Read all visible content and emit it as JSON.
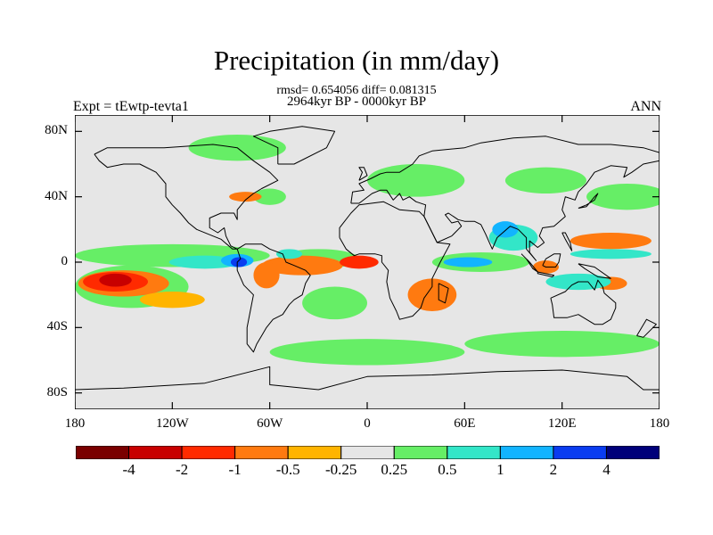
{
  "title": "Precipitation (in mm/day)",
  "stats_line": "rmsd= 0.654056 diff= 0.081315",
  "period_line": "2964kyr BP - 0000kyr BP",
  "left_label": "Expt = tEwtp-tevta1",
  "right_label": "ANN",
  "colors": {
    "background_land_ocean": "#e6e6e6",
    "coast": "#000000"
  },
  "chart_data": {
    "type": "heatmap",
    "projection": "cylindrical-equidistant",
    "title": "Precipitation (in mm/day)",
    "xlabel": "",
    "ylabel": "",
    "xlim": [
      -180,
      180
    ],
    "ylim": [
      -90,
      90
    ],
    "y_ticks": [
      {
        "v": 80,
        "label": "80N"
      },
      {
        "v": 40,
        "label": "40N"
      },
      {
        "v": 0,
        "label": "0"
      },
      {
        "v": -40,
        "label": "40S"
      },
      {
        "v": -80,
        "label": "80S"
      }
    ],
    "x_ticks": [
      {
        "v": -180,
        "label": "180"
      },
      {
        "v": -120,
        "label": "120W"
      },
      {
        "v": -60,
        "label": "60W"
      },
      {
        "v": 0,
        "label": "0"
      },
      {
        "v": 60,
        "label": "60E"
      },
      {
        "v": 120,
        "label": "120E"
      },
      {
        "v": 180,
        "label": "180"
      }
    ],
    "colorbar": {
      "colors": [
        "#7a0000",
        "#c80000",
        "#ff2a00",
        "#ff7a10",
        "#ffb400",
        "#e6e6e6",
        "#66ee66",
        "#33e6c8",
        "#12b4ff",
        "#0a3cf0",
        "#00007a"
      ],
      "labels": [
        "-4",
        "-2",
        "-1",
        "-0.5",
        "-0.25",
        "0.25",
        "0.5",
        "1",
        "2",
        "4"
      ]
    },
    "regions": [
      {
        "c": 6,
        "lon": -120,
        "lat": 4,
        "rx": 60,
        "ry": 7
      },
      {
        "c": 7,
        "lon": -100,
        "lat": 0,
        "rx": 22,
        "ry": 4
      },
      {
        "c": 8,
        "lon": -80,
        "lat": 1,
        "rx": 10,
        "ry": 4
      },
      {
        "c": 9,
        "lon": -79,
        "lat": 0,
        "rx": 5,
        "ry": 3
      },
      {
        "c": 6,
        "lon": -145,
        "lat": -15,
        "rx": 35,
        "ry": 13
      },
      {
        "c": 3,
        "lon": -150,
        "lat": -13,
        "rx": 28,
        "ry": 8
      },
      {
        "c": 2,
        "lon": -155,
        "lat": -12,
        "rx": 20,
        "ry": 6
      },
      {
        "c": 1,
        "lon": -155,
        "lat": -11,
        "rx": 10,
        "ry": 4
      },
      {
        "c": 4,
        "lon": -120,
        "lat": -23,
        "rx": 20,
        "ry": 5
      },
      {
        "c": 6,
        "lon": -30,
        "lat": 2,
        "rx": 25,
        "ry": 6
      },
      {
        "c": 3,
        "lon": -40,
        "lat": -2,
        "rx": 25,
        "ry": 6
      },
      {
        "c": 2,
        "lon": -5,
        "lat": 0,
        "rx": 12,
        "ry": 4
      },
      {
        "c": 3,
        "lon": -62,
        "lat": -8,
        "rx": 8,
        "ry": 8
      },
      {
        "c": 7,
        "lon": -48,
        "lat": 5,
        "rx": 8,
        "ry": 3
      },
      {
        "c": 3,
        "lon": 40,
        "lat": -20,
        "rx": 15,
        "ry": 10
      },
      {
        "c": 6,
        "lon": 70,
        "lat": 0,
        "rx": 30,
        "ry": 6
      },
      {
        "c": 8,
        "lon": 62,
        "lat": 0,
        "rx": 15,
        "ry": 3
      },
      {
        "c": 7,
        "lon": 90,
        "lat": 15,
        "rx": 15,
        "ry": 8
      },
      {
        "c": 8,
        "lon": 85,
        "lat": 20,
        "rx": 8,
        "ry": 5
      },
      {
        "c": 6,
        "lon": 30,
        "lat": 50,
        "rx": 30,
        "ry": 10
      },
      {
        "c": 6,
        "lon": 110,
        "lat": 50,
        "rx": 25,
        "ry": 8
      },
      {
        "c": 6,
        "lon": 160,
        "lat": 40,
        "rx": 25,
        "ry": 8
      },
      {
        "c": 3,
        "lon": 150,
        "lat": 13,
        "rx": 25,
        "ry": 5
      },
      {
        "c": 7,
        "lon": 150,
        "lat": 5,
        "rx": 25,
        "ry": 3
      },
      {
        "c": 3,
        "lon": 110,
        "lat": -3,
        "rx": 8,
        "ry": 4
      },
      {
        "c": 3,
        "lon": 150,
        "lat": -13,
        "rx": 10,
        "ry": 4
      },
      {
        "c": 7,
        "lon": 130,
        "lat": -12,
        "rx": 20,
        "ry": 5
      },
      {
        "c": 6,
        "lon": -20,
        "lat": -25,
        "rx": 20,
        "ry": 10
      },
      {
        "c": 6,
        "lon": 0,
        "lat": -55,
        "rx": 60,
        "ry": 8
      },
      {
        "c": 6,
        "lon": 120,
        "lat": -50,
        "rx": 60,
        "ry": 8
      },
      {
        "c": 6,
        "lon": -80,
        "lat": 70,
        "rx": 30,
        "ry": 8
      },
      {
        "c": 6,
        "lon": -60,
        "lat": 40,
        "rx": 10,
        "ry": 5
      },
      {
        "c": 3,
        "lon": -75,
        "lat": 40,
        "rx": 10,
        "ry": 3
      }
    ],
    "coastlines": [
      [
        [
          -168,
          66
        ],
        [
          -160,
          70
        ],
        [
          -140,
          70
        ],
        [
          -125,
          70
        ],
        [
          -95,
          72
        ],
        [
          -80,
          70
        ],
        [
          -70,
          62
        ],
        [
          -60,
          55
        ],
        [
          -55,
          50
        ],
        [
          -65,
          45
        ],
        [
          -70,
          42
        ],
        [
          -75,
          38
        ],
        [
          -80,
          32
        ],
        [
          -80,
          26
        ],
        [
          -82,
          30
        ],
        [
          -90,
          30
        ],
        [
          -97,
          27
        ],
        [
          -97,
          21
        ],
        [
          -92,
          18
        ],
        [
          -88,
          21
        ],
        [
          -87,
          16
        ],
        [
          -84,
          10
        ],
        [
          -80,
          8
        ],
        [
          -83,
          8
        ],
        [
          -90,
          14
        ],
        [
          -95,
          16
        ],
        [
          -105,
          20
        ],
        [
          -110,
          24
        ],
        [
          -115,
          30
        ],
        [
          -120,
          35
        ],
        [
          -124,
          40
        ],
        [
          -124,
          48
        ],
        [
          -130,
          55
        ],
        [
          -140,
          60
        ],
        [
          -150,
          60
        ],
        [
          -160,
          58
        ],
        [
          -165,
          62
        ],
        [
          -168,
          66
        ]
      ],
      [
        [
          -80,
          8
        ],
        [
          -75,
          11
        ],
        [
          -65,
          11
        ],
        [
          -60,
          8
        ],
        [
          -52,
          5
        ],
        [
          -50,
          0
        ],
        [
          -45,
          -2
        ],
        [
          -38,
          -5
        ],
        [
          -35,
          -8
        ],
        [
          -38,
          -13
        ],
        [
          -40,
          -20
        ],
        [
          -45,
          -23
        ],
        [
          -48,
          -26
        ],
        [
          -52,
          -32
        ],
        [
          -58,
          -35
        ],
        [
          -62,
          -40
        ],
        [
          -65,
          -45
        ],
        [
          -68,
          -50
        ],
        [
          -70,
          -55
        ],
        [
          -74,
          -50
        ],
        [
          -74,
          -40
        ],
        [
          -72,
          -30
        ],
        [
          -70,
          -20
        ],
        [
          -76,
          -14
        ],
        [
          -80,
          -5
        ],
        [
          -80,
          0
        ],
        [
          -78,
          2
        ],
        [
          -80,
          8
        ]
      ],
      [
        [
          -17,
          15
        ],
        [
          -17,
          21
        ],
        [
          -10,
          30
        ],
        [
          -5,
          35
        ],
        [
          10,
          37
        ],
        [
          20,
          32
        ],
        [
          32,
          31
        ],
        [
          35,
          28
        ],
        [
          43,
          12
        ],
        [
          51,
          11
        ],
        [
          45,
          0
        ],
        [
          40,
          -10
        ],
        [
          40,
          -15
        ],
        [
          35,
          -22
        ],
        [
          33,
          -28
        ],
        [
          28,
          -33
        ],
        [
          20,
          -35
        ],
        [
          18,
          -30
        ],
        [
          14,
          -22
        ],
        [
          12,
          -12
        ],
        [
          13,
          -5
        ],
        [
          9,
          0
        ],
        [
          9,
          4
        ],
        [
          5,
          5
        ],
        [
          -5,
          5
        ],
        [
          -8,
          4
        ],
        [
          -13,
          8
        ],
        [
          -17,
          15
        ]
      ],
      [
        [
          -10,
          36
        ],
        [
          -9,
          43
        ],
        [
          -2,
          44
        ],
        [
          -5,
          48
        ],
        [
          2,
          51
        ],
        [
          8,
          54
        ],
        [
          12,
          55
        ],
        [
          20,
          55
        ],
        [
          28,
          60
        ],
        [
          32,
          65
        ],
        [
          40,
          68
        ],
        [
          60,
          70
        ],
        [
          70,
          73
        ],
        [
          90,
          76
        ],
        [
          110,
          77
        ],
        [
          130,
          72
        ],
        [
          150,
          72
        ],
        [
          170,
          70
        ],
        [
          180,
          67
        ]
      ],
      [
        [
          180,
          62
        ],
        [
          170,
          60
        ],
        [
          163,
          55
        ],
        [
          158,
          52
        ],
        [
          160,
          58
        ],
        [
          150,
          59
        ],
        [
          140,
          55
        ],
        [
          135,
          48
        ],
        [
          130,
          43
        ],
        [
          128,
          38
        ],
        [
          122,
          40
        ],
        [
          120,
          32
        ],
        [
          122,
          28
        ],
        [
          115,
          22
        ],
        [
          108,
          21
        ],
        [
          106,
          16
        ],
        [
          109,
          12
        ],
        [
          105,
          9
        ],
        [
          100,
          13
        ],
        [
          100,
          6
        ],
        [
          104,
          1
        ],
        [
          98,
          8
        ],
        [
          98,
          15
        ],
        [
          93,
          20
        ],
        [
          88,
          22
        ],
        [
          80,
          15
        ],
        [
          77,
          8
        ],
        [
          73,
          17
        ],
        [
          70,
          23
        ],
        [
          66,
          25
        ],
        [
          60,
          25
        ],
        [
          56,
          26
        ],
        [
          50,
          30
        ],
        [
          48,
          29
        ],
        [
          52,
          24
        ],
        [
          56,
          25
        ],
        [
          58,
          22
        ],
        [
          52,
          16
        ],
        [
          43,
          12
        ],
        [
          39,
          20
        ],
        [
          35,
          28
        ],
        [
          36,
          35
        ],
        [
          30,
          37
        ],
        [
          26,
          40
        ],
        [
          22,
          38
        ],
        [
          20,
          42
        ],
        [
          16,
          38
        ],
        [
          12,
          44
        ],
        [
          8,
          44
        ],
        [
          3,
          42
        ],
        [
          -5,
          36
        ],
        [
          -10,
          36
        ]
      ],
      [
        [
          113,
          -22
        ],
        [
          114,
          -26
        ],
        [
          115,
          -34
        ],
        [
          123,
          -34
        ],
        [
          130,
          -32
        ],
        [
          135,
          -35
        ],
        [
          140,
          -38
        ],
        [
          145,
          -38
        ],
        [
          150,
          -35
        ],
        [
          153,
          -28
        ],
        [
          153,
          -25
        ],
        [
          146,
          -19
        ],
        [
          145,
          -15
        ],
        [
          142,
          -11
        ],
        [
          140,
          -17
        ],
        [
          136,
          -12
        ],
        [
          130,
          -12
        ],
        [
          126,
          -14
        ],
        [
          122,
          -18
        ],
        [
          113,
          -22
        ]
      ],
      [
        [
          95,
          5
        ],
        [
          100,
          0
        ],
        [
          105,
          -6
        ],
        [
          102,
          -4
        ],
        [
          98,
          2
        ],
        [
          95,
          5
        ]
      ],
      [
        [
          108,
          -2
        ],
        [
          110,
          2
        ],
        [
          115,
          5
        ],
        [
          119,
          5
        ],
        [
          118,
          0
        ],
        [
          116,
          -3
        ],
        [
          110,
          -3
        ],
        [
          108,
          -2
        ]
      ],
      [
        [
          105,
          -6
        ],
        [
          115,
          -8
        ],
        [
          114,
          -9
        ],
        [
          105,
          -7
        ],
        [
          105,
          -6
        ]
      ],
      [
        [
          130,
          -1
        ],
        [
          140,
          -3
        ],
        [
          150,
          -10
        ],
        [
          142,
          -9
        ],
        [
          134,
          -4
        ],
        [
          130,
          -1
        ]
      ],
      [
        [
          120,
          18
        ],
        [
          122,
          14
        ],
        [
          126,
          7
        ],
        [
          125,
          12
        ],
        [
          122,
          18
        ],
        [
          120,
          18
        ]
      ],
      [
        [
          130,
          33
        ],
        [
          135,
          35
        ],
        [
          140,
          38
        ],
        [
          142,
          42
        ],
        [
          140,
          40
        ],
        [
          135,
          34
        ],
        [
          130,
          33
        ]
      ],
      [
        [
          44,
          -13
        ],
        [
          50,
          -16
        ],
        [
          48,
          -25
        ],
        [
          44,
          -23
        ],
        [
          44,
          -13
        ]
      ],
      [
        [
          -5,
          50
        ],
        [
          -3,
          55
        ],
        [
          -5,
          58
        ],
        [
          -2,
          58
        ],
        [
          0,
          53
        ],
        [
          -5,
          50
        ]
      ],
      [
        [
          -55,
          60
        ],
        [
          -45,
          60
        ],
        [
          -25,
          70
        ],
        [
          -20,
          80
        ],
        [
          -40,
          83
        ],
        [
          -60,
          80
        ],
        [
          -70,
          77
        ],
        [
          -55,
          70
        ],
        [
          -55,
          60
        ]
      ],
      [
        [
          166,
          -45
        ],
        [
          172,
          -35
        ],
        [
          178,
          -38
        ],
        [
          170,
          -46
        ],
        [
          166,
          -45
        ]
      ],
      [
        [
          -180,
          -78
        ],
        [
          -150,
          -77
        ],
        [
          -100,
          -74
        ],
        [
          -60,
          -64
        ],
        [
          -60,
          -75
        ],
        [
          -30,
          -78
        ],
        [
          0,
          -70
        ],
        [
          40,
          -69
        ],
        [
          80,
          -67
        ],
        [
          120,
          -66
        ],
        [
          160,
          -70
        ],
        [
          170,
          -78
        ],
        [
          180,
          -78
        ]
      ]
    ]
  }
}
